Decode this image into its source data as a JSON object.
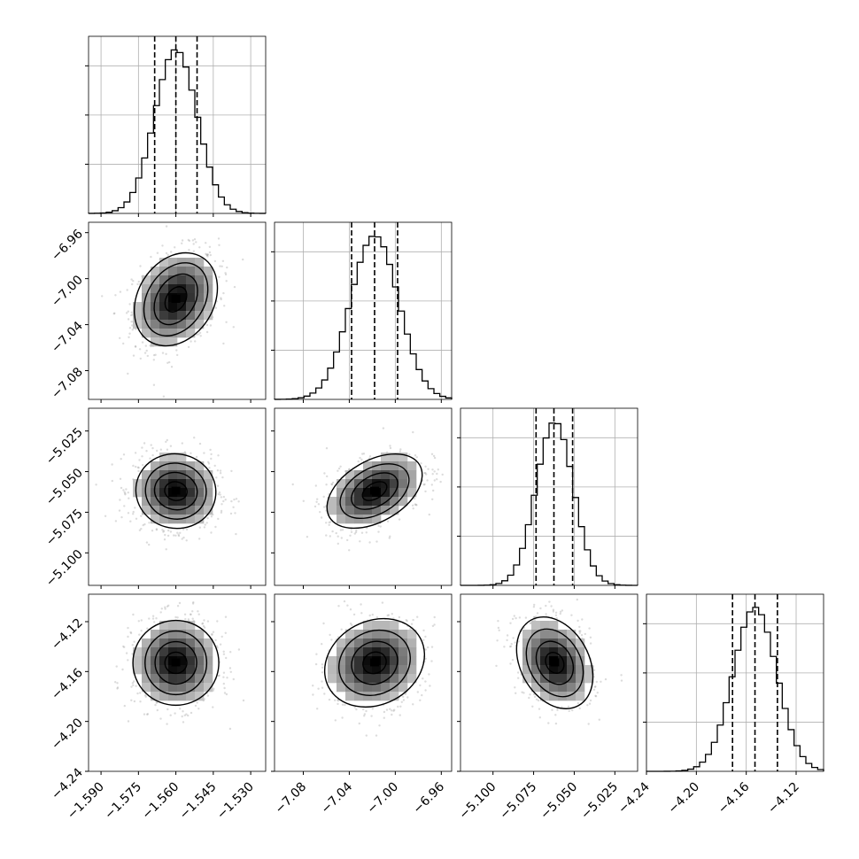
{
  "chart_data": {
    "type": "corner",
    "parameters": [
      {
        "range": [
          -1.595,
          -1.524
        ],
        "ticks": [
          -1.59,
          -1.575,
          -1.56,
          -1.545,
          -1.53
        ],
        "tick_labels": [
          "−1.590",
          "−1.575",
          "−1.560",
          "−1.545",
          "−1.530"
        ],
        "mean": -1.56,
        "sigma": 0.0085,
        "quantiles": [
          -1.5685,
          -1.56,
          -1.5515
        ]
      },
      {
        "range": [
          -7.105,
          -6.951
        ],
        "ticks": [
          -7.08,
          -7.04,
          -7.0,
          -6.96
        ],
        "tick_labels": [
          "−7.08",
          "−7.04",
          "−7.00",
          "−6.96"
        ],
        "mean": -7.018,
        "sigma": 0.021,
        "quantiles": [
          -7.038,
          -7.018,
          -6.998
        ]
      },
      {
        "range": [
          -5.12,
          -5.011
        ],
        "ticks": [
          -5.1,
          -5.075,
          -5.05,
          -5.025
        ],
        "tick_labels": [
          "−5.100",
          "−5.075",
          "−5.050",
          "−5.025"
        ],
        "mean": -5.062,
        "sigma": 0.0115,
        "quantiles": [
          -5.0735,
          -5.0625,
          -5.051
        ]
      },
      {
        "range": [
          -4.24,
          -4.098
        ],
        "ticks": [
          -4.24,
          -4.2,
          -4.16,
          -4.12
        ],
        "tick_labels": [
          "−4.24",
          "−4.20",
          "−4.16",
          "−4.12"
        ],
        "mean": -4.153,
        "sigma": 0.0175,
        "quantiles": [
          -4.171,
          -4.153,
          -4.135
        ]
      }
    ],
    "correlations": [
      [
        0,
        1,
        0.28
      ],
      [
        0,
        2,
        -0.05
      ],
      [
        1,
        2,
        0.45
      ],
      [
        0,
        3,
        0.0
      ],
      [
        1,
        3,
        0.15
      ],
      [
        2,
        3,
        -0.25
      ]
    ],
    "contour_levels": [
      "0.5σ",
      "1σ",
      "1.5σ",
      "2σ"
    ],
    "grid": true,
    "quantile_line_style": "dashed"
  }
}
